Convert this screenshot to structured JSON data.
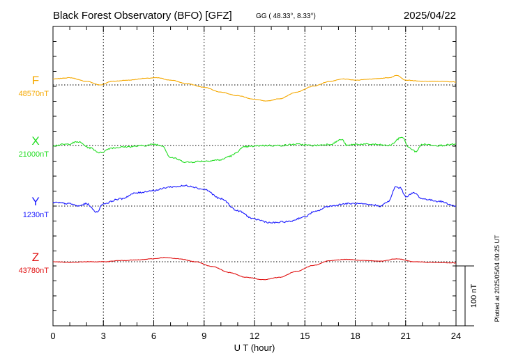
{
  "header": {
    "title": "Black Forest Observatory (BFO)  [GFZ]",
    "coords": "GG ( 48.33°,   8.33°)",
    "date": "2025/04/22"
  },
  "side_note": "Plotted at 2025/05/04 00:25 UT",
  "scale_bar": {
    "label": "100 nT",
    "value_nT": 100
  },
  "chart_data": {
    "type": "line",
    "title": "Black Forest Observatory (BFO)  [GFZ]",
    "xlabel": "U T (hour)",
    "ylabel": "",
    "x_ticks": [
      0,
      3,
      6,
      9,
      12,
      15,
      18,
      21,
      24
    ],
    "xlim": [
      0,
      24
    ],
    "grid": true,
    "nT_per_scale_bar": 100,
    "series": [
      {
        "name": "F",
        "baseline_label": "48570nT",
        "baseline_nT": 48570,
        "color": "#f5a800",
        "x": [
          0,
          1,
          2,
          2.8,
          3.5,
          4.5,
          5.5,
          6.2,
          7,
          8,
          9,
          10,
          11,
          12,
          12.7,
          13.5,
          14.5,
          15.5,
          16.5,
          17.3,
          18,
          19,
          20,
          20.5,
          21,
          22,
          23,
          24
        ],
        "values": [
          10,
          12,
          6,
          0,
          6,
          8,
          11,
          12,
          8,
          2,
          -4,
          -12,
          -18,
          -24,
          -27,
          -23,
          -12,
          -2,
          6,
          10,
          8,
          10,
          12,
          16,
          8,
          6,
          6,
          5
        ]
      },
      {
        "name": "X",
        "baseline_label": "21000nT",
        "baseline_nT": 21000,
        "color": "#22dd22",
        "x": [
          0,
          0.8,
          1.5,
          2.2,
          2.8,
          3.5,
          4.5,
          5.5,
          6,
          6.5,
          7,
          8,
          9,
          10,
          10.5,
          11.5,
          12.5,
          13.5,
          14.5,
          15.5,
          16.5,
          17.2,
          17.5,
          18,
          19,
          20,
          20.8,
          21.2,
          21.6,
          22,
          23,
          24
        ],
        "values": [
          0,
          2,
          6,
          -4,
          -12,
          -4,
          -2,
          0,
          2,
          0,
          -20,
          -28,
          -26,
          -24,
          -18,
          -2,
          0,
          0,
          2,
          0,
          2,
          10,
          0,
          2,
          2,
          0,
          14,
          -4,
          -10,
          2,
          0,
          2
        ]
      },
      {
        "name": "Y",
        "baseline_label": "1230nT",
        "baseline_nT": 1230,
        "color": "#1a1aff",
        "x": [
          0,
          1,
          1.5,
          2,
          2.6,
          3,
          4,
          5,
          6,
          7,
          8,
          9,
          10,
          11,
          12,
          13,
          14,
          15,
          15.5,
          16.5,
          17.5,
          18,
          19,
          19.5,
          20,
          20.4,
          20.7,
          21,
          21.5,
          22,
          23,
          24
        ],
        "values": [
          6,
          4,
          0,
          4,
          -10,
          4,
          12,
          22,
          26,
          32,
          34,
          28,
          12,
          -8,
          -22,
          -28,
          -26,
          -18,
          -10,
          0,
          4,
          4,
          2,
          0,
          8,
          32,
          30,
          16,
          22,
          12,
          8,
          0
        ]
      },
      {
        "name": "Z",
        "baseline_label": "43780nT",
        "baseline_nT": 43780,
        "color": "#e01010",
        "x": [
          0,
          1,
          2,
          3,
          4,
          5,
          6,
          6.6,
          7.5,
          8.5,
          9.5,
          10.5,
          11.5,
          12.5,
          13.5,
          14.5,
          15.5,
          16.5,
          17.5,
          18.5,
          19.5,
          20.5,
          21.5,
          22.5,
          24
        ],
        "values": [
          0,
          -1,
          0,
          0,
          2,
          3,
          5,
          7,
          5,
          0,
          -8,
          -18,
          -26,
          -30,
          -26,
          -16,
          -6,
          2,
          4,
          2,
          1,
          5,
          0,
          -1,
          -2
        ]
      }
    ]
  }
}
